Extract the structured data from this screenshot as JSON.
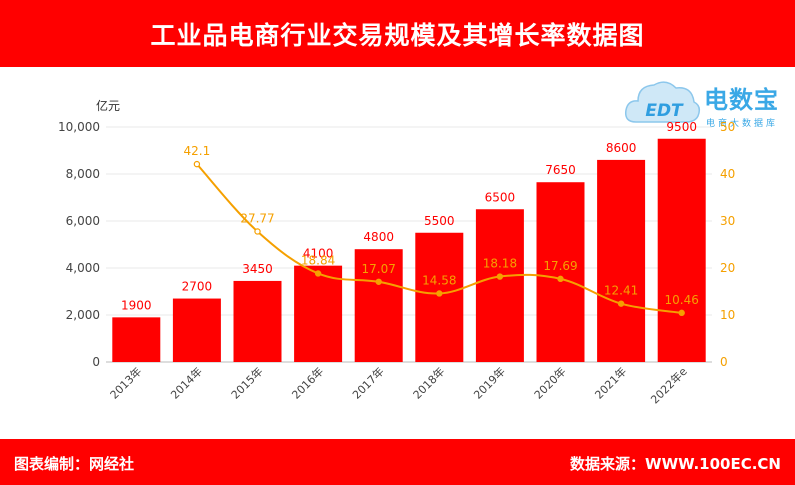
{
  "header": {
    "title": "工业品电商行业交易规模及其增长率数据图"
  },
  "footer": {
    "left_text": "图表编制：网经社",
    "right_text": "数据来源：WWW.100EC.CN"
  },
  "logo": {
    "brand": "电数宝",
    "sub": "电商大数据库",
    "emblem": "EDT"
  },
  "colors": {
    "accent": "#ff0000",
    "line": "#f5a000",
    "logo": "#3aa8e6"
  },
  "chart_data": {
    "type": "bar",
    "categories": [
      "2013年",
      "2014年",
      "2015年",
      "2016年",
      "2017年",
      "2018年",
      "2019年",
      "2020年",
      "2021年",
      "2022年e"
    ],
    "series": [
      {
        "type": "bar",
        "axis": "left",
        "values": [
          1900,
          2700,
          3450,
          4100,
          4800,
          5500,
          6500,
          7650,
          8600,
          9500
        ]
      },
      {
        "type": "line",
        "axis": "right",
        "values": [
          null,
          42.1,
          27.77,
          18.84,
          17.07,
          14.58,
          18.18,
          17.69,
          12.41,
          10.46
        ]
      }
    ],
    "ylabel": "亿元",
    "ylim": [
      0,
      10000
    ],
    "yticks": [
      "0",
      "2,000",
      "4,000",
      "6,000",
      "8,000",
      "10,000"
    ],
    "y2lim": [
      0,
      50
    ],
    "y2ticks": [
      "0",
      "10",
      "20",
      "30",
      "40",
      "50"
    ],
    "bar_labels": [
      "1900",
      "2700",
      "3450",
      "4100",
      "4800",
      "5500",
      "6500",
      "7650",
      "8600",
      "9500"
    ],
    "line_labels": [
      "",
      "42.1",
      "27.77",
      "18.84",
      "17.07",
      "14.58",
      "18.18",
      "17.69",
      "12.41",
      "10.46"
    ],
    "grid": true
  }
}
